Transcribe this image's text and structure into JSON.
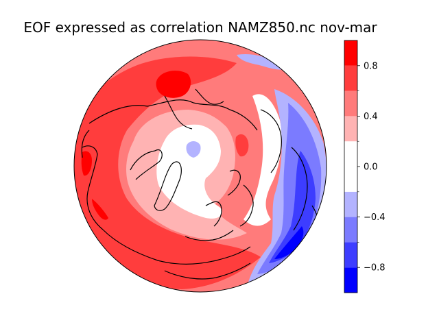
{
  "figure": {
    "title": "EOF expressed as correlation NAMZ850.nc nov-mar"
  },
  "map": {
    "projection": "north-polar stereographic",
    "coastline_color": "#000000",
    "field": "EOF expressed as correlation",
    "pattern": {
      "positive_centers": [
        "North Pacific",
        "Eurasia",
        "North Atlantic"
      ],
      "negative_centers": [
        "Arctic (weak)",
        "North America (east)"
      ]
    }
  },
  "colorbar": {
    "levels": [
      -1.0,
      -0.8,
      -0.6,
      -0.4,
      -0.2,
      0.2,
      0.4,
      0.6,
      0.8,
      1.0
    ],
    "colors": [
      "#0000ff",
      "#3d3dff",
      "#7b7bff",
      "#b3b3ff",
      "#ffffff",
      "#ffb3b3",
      "#ff7b7b",
      "#ff3d3d",
      "#ff0000"
    ],
    "major_ticks": [
      {
        "value": 0.8,
        "label": "0.8"
      },
      {
        "value": 0.4,
        "label": "0.4"
      },
      {
        "value": 0.0,
        "label": "0.0"
      },
      {
        "value": -0.4,
        "label": "−0.4"
      },
      {
        "value": -0.8,
        "label": "−0.8"
      }
    ],
    "minor_ticks": [
      0.6,
      0.2,
      -0.2,
      -0.6
    ]
  }
}
